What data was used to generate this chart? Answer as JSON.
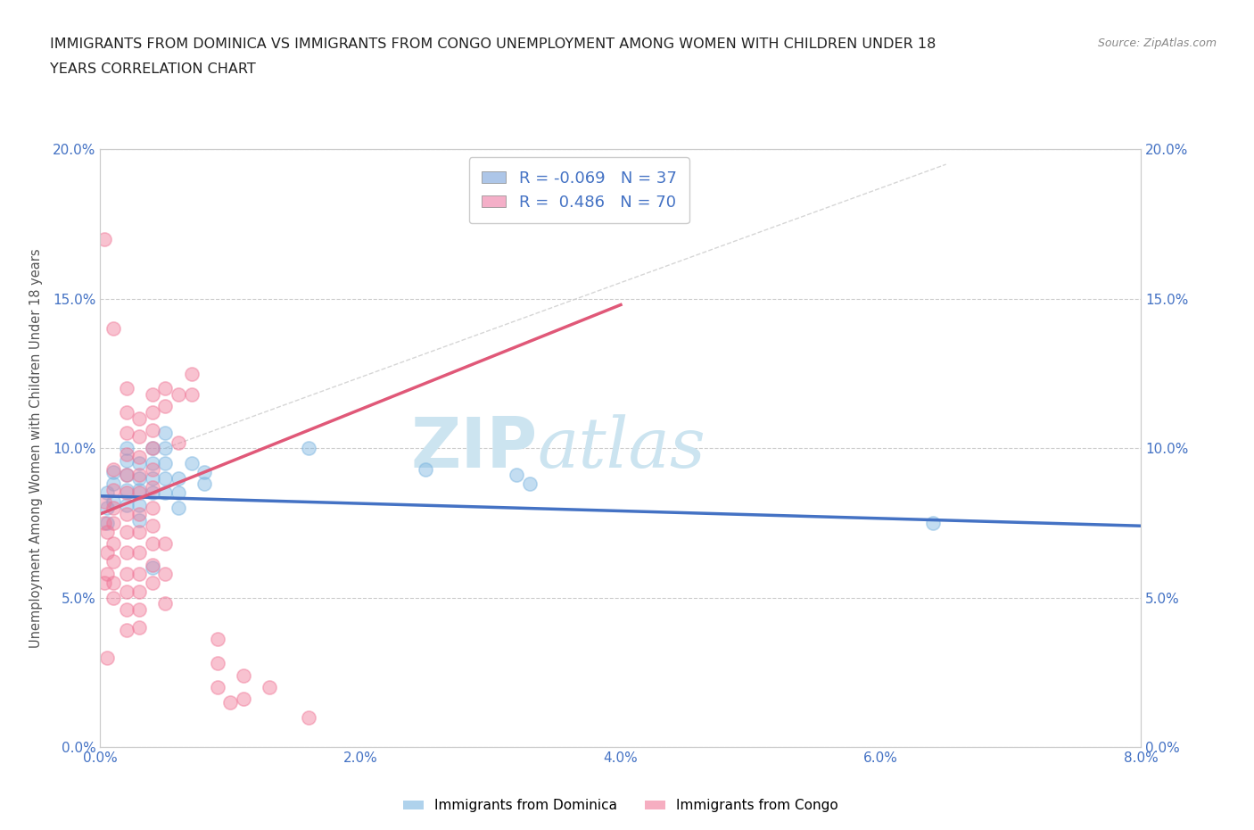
{
  "title_line1": "IMMIGRANTS FROM DOMINICA VS IMMIGRANTS FROM CONGO UNEMPLOYMENT AMONG WOMEN WITH CHILDREN UNDER 18",
  "title_line2": "YEARS CORRELATION CHART",
  "source_text": "Source: ZipAtlas.com",
  "ylabel": "Unemployment Among Women with Children Under 18 years",
  "xlim": [
    0.0,
    0.08
  ],
  "ylim": [
    0.0,
    0.2
  ],
  "xticks": [
    0.0,
    0.02,
    0.04,
    0.06,
    0.08
  ],
  "yticks": [
    0.0,
    0.05,
    0.1,
    0.15,
    0.2
  ],
  "xticklabels": [
    "0.0%",
    "2.0%",
    "4.0%",
    "6.0%",
    "8.0%"
  ],
  "yticklabels": [
    "0.0%",
    "5.0%",
    "10.0%",
    "15.0%",
    "20.0%"
  ],
  "legend_entries": [
    {
      "label": "Immigrants from Dominica",
      "color": "#adc6e8",
      "R": -0.069,
      "N": 37
    },
    {
      "label": "Immigrants from Congo",
      "color": "#f4afc8",
      "R": 0.486,
      "N": 70
    }
  ],
  "dominica_color": "#7ab4e0",
  "congo_color": "#f07898",
  "dominica_line_color": "#4472c4",
  "congo_line_color": "#e05878",
  "dominica_trendline": [
    0.0,
    0.084,
    0.08,
    0.074
  ],
  "congo_trendline": [
    0.0,
    0.078,
    0.04,
    0.148
  ],
  "ref_line": [
    [
      0.005,
      0.1
    ],
    [
      0.065,
      0.195
    ]
  ],
  "dominica_scatter": [
    [
      0.0005,
      0.085
    ],
    [
      0.001,
      0.092
    ],
    [
      0.001,
      0.082
    ],
    [
      0.0005,
      0.08
    ],
    [
      0.0005,
      0.075
    ],
    [
      0.001,
      0.088
    ],
    [
      0.002,
      0.1
    ],
    [
      0.002,
      0.096
    ],
    [
      0.002,
      0.091
    ],
    [
      0.002,
      0.086
    ],
    [
      0.002,
      0.081
    ],
    [
      0.003,
      0.095
    ],
    [
      0.003,
      0.09
    ],
    [
      0.003,
      0.086
    ],
    [
      0.003,
      0.081
    ],
    [
      0.003,
      0.076
    ],
    [
      0.004,
      0.1
    ],
    [
      0.004,
      0.095
    ],
    [
      0.004,
      0.09
    ],
    [
      0.004,
      0.085
    ],
    [
      0.005,
      0.105
    ],
    [
      0.005,
      0.1
    ],
    [
      0.005,
      0.095
    ],
    [
      0.005,
      0.09
    ],
    [
      0.005,
      0.085
    ],
    [
      0.006,
      0.09
    ],
    [
      0.006,
      0.085
    ],
    [
      0.006,
      0.08
    ],
    [
      0.007,
      0.095
    ],
    [
      0.008,
      0.092
    ],
    [
      0.008,
      0.088
    ],
    [
      0.016,
      0.1
    ],
    [
      0.025,
      0.093
    ],
    [
      0.032,
      0.091
    ],
    [
      0.033,
      0.088
    ],
    [
      0.064,
      0.075
    ],
    [
      0.004,
      0.06
    ]
  ],
  "congo_scatter": [
    [
      0.0003,
      0.17
    ],
    [
      0.0003,
      0.082
    ],
    [
      0.0003,
      0.075
    ],
    [
      0.001,
      0.14
    ],
    [
      0.001,
      0.093
    ],
    [
      0.001,
      0.086
    ],
    [
      0.001,
      0.08
    ],
    [
      0.001,
      0.075
    ],
    [
      0.001,
      0.068
    ],
    [
      0.001,
      0.062
    ],
    [
      0.001,
      0.055
    ],
    [
      0.001,
      0.05
    ],
    [
      0.0005,
      0.072
    ],
    [
      0.0005,
      0.065
    ],
    [
      0.0005,
      0.058
    ],
    [
      0.002,
      0.12
    ],
    [
      0.002,
      0.112
    ],
    [
      0.002,
      0.105
    ],
    [
      0.002,
      0.098
    ],
    [
      0.002,
      0.091
    ],
    [
      0.002,
      0.085
    ],
    [
      0.002,
      0.078
    ],
    [
      0.002,
      0.072
    ],
    [
      0.002,
      0.065
    ],
    [
      0.002,
      0.058
    ],
    [
      0.002,
      0.052
    ],
    [
      0.002,
      0.046
    ],
    [
      0.002,
      0.039
    ],
    [
      0.003,
      0.11
    ],
    [
      0.003,
      0.104
    ],
    [
      0.003,
      0.097
    ],
    [
      0.003,
      0.091
    ],
    [
      0.003,
      0.085
    ],
    [
      0.003,
      0.078
    ],
    [
      0.003,
      0.072
    ],
    [
      0.003,
      0.065
    ],
    [
      0.003,
      0.058
    ],
    [
      0.003,
      0.052
    ],
    [
      0.003,
      0.046
    ],
    [
      0.003,
      0.04
    ],
    [
      0.004,
      0.118
    ],
    [
      0.004,
      0.112
    ],
    [
      0.004,
      0.106
    ],
    [
      0.004,
      0.1
    ],
    [
      0.004,
      0.093
    ],
    [
      0.004,
      0.087
    ],
    [
      0.004,
      0.08
    ],
    [
      0.004,
      0.074
    ],
    [
      0.004,
      0.068
    ],
    [
      0.004,
      0.061
    ],
    [
      0.004,
      0.055
    ],
    [
      0.005,
      0.12
    ],
    [
      0.005,
      0.114
    ],
    [
      0.005,
      0.068
    ],
    [
      0.005,
      0.058
    ],
    [
      0.005,
      0.048
    ],
    [
      0.006,
      0.118
    ],
    [
      0.006,
      0.102
    ],
    [
      0.007,
      0.125
    ],
    [
      0.007,
      0.118
    ],
    [
      0.009,
      0.036
    ],
    [
      0.009,
      0.028
    ],
    [
      0.009,
      0.02
    ],
    [
      0.01,
      0.015
    ],
    [
      0.011,
      0.024
    ],
    [
      0.011,
      0.016
    ],
    [
      0.013,
      0.02
    ],
    [
      0.016,
      0.01
    ],
    [
      0.0005,
      0.03
    ],
    [
      0.0003,
      0.055
    ]
  ],
  "watermark_zip": "ZIP",
  "watermark_atlas": "atlas",
  "watermark_color": "#cce4f0",
  "background_color": "#ffffff",
  "grid_color": "#e8e8e8",
  "tick_color": "#4472c4",
  "axis_color": "#cccccc"
}
